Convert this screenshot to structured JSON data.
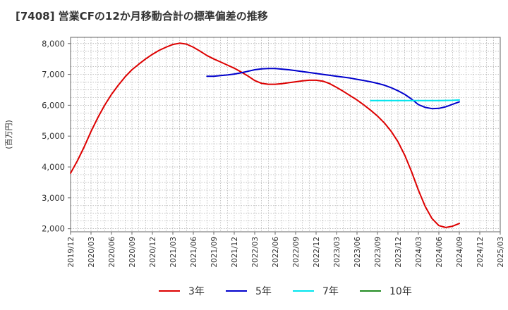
{
  "chart_data": {
    "type": "line",
    "title": "[7408]  営業CFの12か月移動合計の標準偏差の推移",
    "ylabel": "(百万円)",
    "ylim": [
      1900,
      8200
    ],
    "yticks": [
      2000,
      3000,
      4000,
      5000,
      6000,
      7000,
      8000
    ],
    "ytick_labels": [
      "2,000",
      "3,000",
      "4,000",
      "5,000",
      "6,000",
      "7,000",
      "8,000"
    ],
    "x_months": [
      "2019-12",
      "2025-03"
    ],
    "xtick_labels": [
      "2019/12",
      "2020/03",
      "2020/06",
      "2020/09",
      "2020/12",
      "2021/03",
      "2021/06",
      "2021/09",
      "2021/12",
      "2022/03",
      "2022/06",
      "2022/09",
      "2022/12",
      "2023/03",
      "2023/06",
      "2023/09",
      "2023/12",
      "2024/03",
      "2024/06",
      "2024/09",
      "2024/12",
      "2025/03"
    ],
    "grid": true,
    "legend_position": "bottom",
    "series": [
      {
        "name": "3年",
        "color": "#dd0000",
        "points": [
          [
            "2019-12",
            3800
          ],
          [
            "2020-01",
            4200
          ],
          [
            "2020-02",
            4650
          ],
          [
            "2020-03",
            5150
          ],
          [
            "2020-04",
            5600
          ],
          [
            "2020-05",
            6000
          ],
          [
            "2020-06",
            6350
          ],
          [
            "2020-07",
            6650
          ],
          [
            "2020-08",
            6920
          ],
          [
            "2020-09",
            7150
          ],
          [
            "2020-10",
            7330
          ],
          [
            "2020-11",
            7500
          ],
          [
            "2020-12",
            7650
          ],
          [
            "2021-01",
            7780
          ],
          [
            "2021-02",
            7880
          ],
          [
            "2021-03",
            7970
          ],
          [
            "2021-04",
            8010
          ],
          [
            "2021-05",
            7980
          ],
          [
            "2021-06",
            7880
          ],
          [
            "2021-07",
            7750
          ],
          [
            "2021-08",
            7610
          ],
          [
            "2021-09",
            7500
          ],
          [
            "2021-10",
            7400
          ],
          [
            "2021-11",
            7300
          ],
          [
            "2021-12",
            7200
          ],
          [
            "2022-01",
            7080
          ],
          [
            "2022-02",
            6950
          ],
          [
            "2022-03",
            6800
          ],
          [
            "2022-04",
            6710
          ],
          [
            "2022-05",
            6680
          ],
          [
            "2022-06",
            6680
          ],
          [
            "2022-07",
            6700
          ],
          [
            "2022-08",
            6730
          ],
          [
            "2022-09",
            6760
          ],
          [
            "2022-10",
            6790
          ],
          [
            "2022-11",
            6810
          ],
          [
            "2022-12",
            6810
          ],
          [
            "2023-01",
            6780
          ],
          [
            "2023-02",
            6700
          ],
          [
            "2023-03",
            6580
          ],
          [
            "2023-04",
            6450
          ],
          [
            "2023-05",
            6310
          ],
          [
            "2023-06",
            6170
          ],
          [
            "2023-07",
            6010
          ],
          [
            "2023-08",
            5840
          ],
          [
            "2023-09",
            5650
          ],
          [
            "2023-10",
            5430
          ],
          [
            "2023-11",
            5160
          ],
          [
            "2023-12",
            4820
          ],
          [
            "2024-01",
            4380
          ],
          [
            "2024-02",
            3850
          ],
          [
            "2024-03",
            3250
          ],
          [
            "2024-04",
            2720
          ],
          [
            "2024-05",
            2330
          ],
          [
            "2024-06",
            2100
          ],
          [
            "2024-07",
            2040
          ],
          [
            "2024-08",
            2080
          ],
          [
            "2024-09",
            2170
          ]
        ]
      },
      {
        "name": "5年",
        "color": "#0000cc",
        "points": [
          [
            "2021-08",
            6940
          ],
          [
            "2021-09",
            6940
          ],
          [
            "2021-10",
            6960
          ],
          [
            "2021-11",
            6980
          ],
          [
            "2021-12",
            7010
          ],
          [
            "2022-01",
            7050
          ],
          [
            "2022-02",
            7100
          ],
          [
            "2022-03",
            7150
          ],
          [
            "2022-04",
            7180
          ],
          [
            "2022-05",
            7190
          ],
          [
            "2022-06",
            7190
          ],
          [
            "2022-07",
            7170
          ],
          [
            "2022-08",
            7150
          ],
          [
            "2022-09",
            7120
          ],
          [
            "2022-10",
            7090
          ],
          [
            "2022-11",
            7060
          ],
          [
            "2022-12",
            7030
          ],
          [
            "2023-01",
            7000
          ],
          [
            "2023-02",
            6970
          ],
          [
            "2023-03",
            6940
          ],
          [
            "2023-04",
            6910
          ],
          [
            "2023-05",
            6880
          ],
          [
            "2023-06",
            6840
          ],
          [
            "2023-07",
            6800
          ],
          [
            "2023-08",
            6760
          ],
          [
            "2023-09",
            6710
          ],
          [
            "2023-10",
            6650
          ],
          [
            "2023-11",
            6570
          ],
          [
            "2023-12",
            6470
          ],
          [
            "2024-01",
            6350
          ],
          [
            "2024-02",
            6200
          ],
          [
            "2024-03",
            6020
          ],
          [
            "2024-04",
            5930
          ],
          [
            "2024-05",
            5890
          ],
          [
            "2024-06",
            5900
          ],
          [
            "2024-07",
            5950
          ],
          [
            "2024-08",
            6030
          ],
          [
            "2024-09",
            6110
          ]
        ]
      },
      {
        "name": "7年",
        "color": "#00e5ee",
        "points": [
          [
            "2023-08",
            6150
          ],
          [
            "2023-10",
            6150
          ],
          [
            "2023-12",
            6150
          ],
          [
            "2024-02",
            6150
          ],
          [
            "2024-04",
            6150
          ],
          [
            "2024-06",
            6150
          ],
          [
            "2024-08",
            6160
          ],
          [
            "2024-09",
            6170
          ]
        ]
      },
      {
        "name": "10年",
        "color": "#228b22",
        "points": []
      }
    ]
  }
}
